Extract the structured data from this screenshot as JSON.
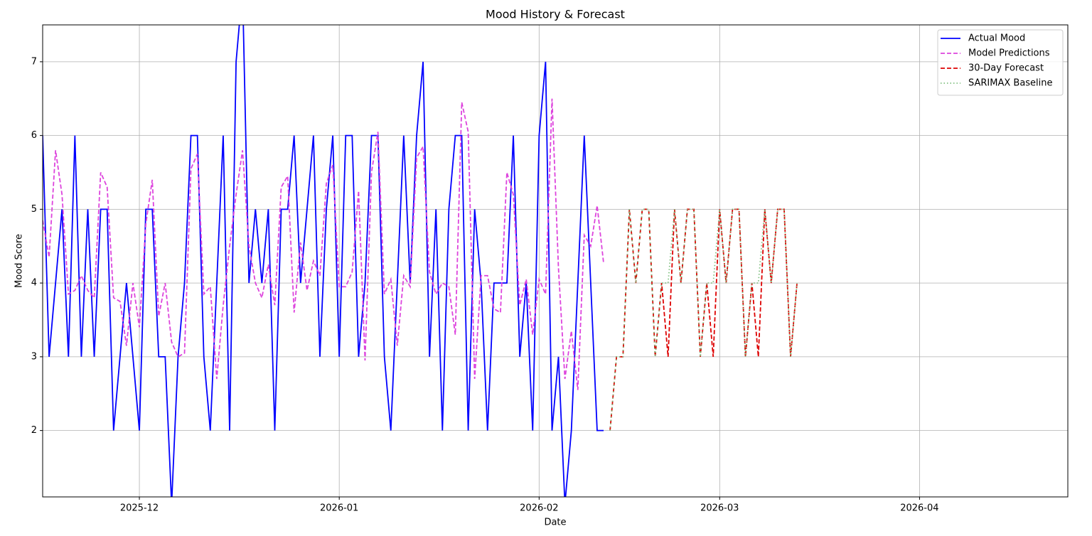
{
  "chart_data": {
    "type": "line",
    "title": "Mood History & Forecast",
    "xlabel": "Date",
    "ylabel": "Mood Score",
    "xlim": [
      20408,
      20567
    ],
    "ylim": [
      1.1,
      7.5
    ],
    "xticks": [
      {
        "value": 20423,
        "label": "2025-12"
      },
      {
        "value": 20454,
        "label": "2026-01"
      },
      {
        "value": 20485,
        "label": "2026-02"
      },
      {
        "value": 20513,
        "label": "2026-03"
      },
      {
        "value": 20544,
        "label": "2026-04"
      }
    ],
    "yticks": [
      2,
      3,
      4,
      5,
      6,
      7
    ],
    "grid": true,
    "legend": "upper right",
    "series": [
      {
        "name": "Actual Mood",
        "color": "#0000ff",
        "linestyle": "solid",
        "x": [
          20408,
          20409,
          20410,
          20411,
          20412,
          20413,
          20414,
          20415,
          20416,
          20417,
          20418,
          20419,
          20420,
          20421,
          20422,
          20423,
          20424,
          20425,
          20426,
          20427,
          20428,
          20429,
          20430,
          20431,
          20432,
          20433,
          20434,
          20435,
          20436,
          20437,
          20438,
          20439,
          20440,
          20441,
          20442,
          20443,
          20444,
          20445,
          20446,
          20447,
          20448,
          20449,
          20450,
          20451,
          20452,
          20453,
          20454,
          20455,
          20456,
          20457,
          20458,
          20459,
          20460,
          20461,
          20462,
          20463,
          20464,
          20465,
          20466,
          20467,
          20468,
          20469,
          20470,
          20471,
          20472,
          20473,
          20474,
          20475,
          20476,
          20477,
          20478,
          20479,
          20480,
          20481,
          20482,
          20483,
          20484,
          20485,
          20486,
          20487,
          20488,
          20489,
          20490,
          20491,
          20492,
          20493,
          20494,
          20495
        ],
        "values": [
          6,
          3,
          4,
          5,
          3,
          6,
          3,
          5,
          3,
          5,
          5,
          2,
          3,
          4,
          3,
          2,
          5,
          5,
          3,
          3,
          1,
          3,
          4,
          6,
          6,
          3,
          2,
          4,
          6,
          2,
          7,
          8,
          4,
          5,
          4,
          5,
          2,
          5,
          5,
          6,
          4,
          5,
          6,
          3,
          5,
          6,
          3,
          6,
          6,
          3,
          4,
          6,
          6,
          3,
          2,
          4,
          6,
          4,
          6,
          7,
          3,
          5,
          2,
          5,
          6,
          6,
          2,
          5,
          4,
          2,
          4,
          4,
          4,
          6,
          3,
          4,
          2,
          6,
          7,
          2,
          3,
          1,
          2,
          4,
          6,
          4,
          2,
          2
        ]
      },
      {
        "name": "Model Predictions",
        "color": "#dd44dd",
        "linestyle": "dashed",
        "x": [
          20408,
          20409,
          20410,
          20411,
          20412,
          20413,
          20414,
          20415,
          20416,
          20417,
          20418,
          20419,
          20420,
          20421,
          20422,
          20423,
          20424,
          20425,
          20426,
          20427,
          20428,
          20429,
          20430,
          20431,
          20432,
          20433,
          20434,
          20435,
          20436,
          20437,
          20438,
          20439,
          20440,
          20441,
          20442,
          20443,
          20444,
          20445,
          20446,
          20447,
          20448,
          20449,
          20450,
          20451,
          20452,
          20453,
          20454,
          20455,
          20456,
          20457,
          20458,
          20459,
          20460,
          20461,
          20462,
          20463,
          20464,
          20465,
          20466,
          20467,
          20468,
          20469,
          20470,
          20471,
          20472,
          20473,
          20474,
          20475,
          20476,
          20477,
          20478,
          20479,
          20480,
          20481,
          20482,
          20483,
          20484,
          20485,
          20486,
          20487,
          20488,
          20489,
          20490,
          20491,
          20492,
          20493,
          20494,
          20495
        ],
        "values": [
          4.85,
          4.35,
          5.8,
          5.2,
          3.85,
          3.9,
          4.1,
          3.9,
          3.8,
          5.5,
          5.3,
          3.8,
          3.75,
          3.15,
          4.0,
          3.4,
          4.8,
          5.4,
          3.55,
          4.0,
          3.2,
          3.0,
          3.05,
          5.55,
          5.75,
          3.85,
          3.95,
          2.7,
          3.7,
          4.5,
          5.2,
          5.8,
          4.5,
          4.0,
          3.8,
          4.25,
          3.7,
          5.3,
          5.45,
          3.6,
          4.55,
          3.9,
          4.3,
          4.1,
          5.35,
          5.6,
          3.95,
          3.95,
          4.15,
          5.25,
          2.95,
          5.5,
          6.05,
          3.85,
          4.05,
          3.15,
          4.1,
          3.95,
          5.7,
          5.85,
          4.15,
          3.85,
          4.0,
          3.95,
          3.3,
          6.45,
          6.05,
          2.7,
          4.1,
          4.1,
          3.65,
          3.6,
          5.5,
          5.2,
          3.7,
          4.05,
          3.3,
          4.05,
          3.85,
          6.5,
          4.2,
          2.7,
          3.35,
          2.55,
          4.65,
          4.5,
          5.05,
          4.27
        ]
      },
      {
        "name": "30-Day Forecast",
        "color": "#dd0000",
        "linestyle": "dashed",
        "x": [
          20496,
          20497,
          20498,
          20499,
          20500,
          20501,
          20502,
          20503,
          20504,
          20505,
          20506,
          20507,
          20508,
          20509,
          20510,
          20511,
          20512,
          20513,
          20514,
          20515,
          20516,
          20517,
          20518,
          20519,
          20520,
          20521,
          20522,
          20523,
          20524,
          20525
        ],
        "values": [
          2,
          3,
          3,
          5,
          4,
          5,
          5,
          3,
          4,
          3,
          5,
          4,
          5,
          5,
          3,
          4,
          3,
          5,
          4,
          5,
          5,
          3,
          4,
          3,
          5,
          4,
          5,
          5,
          3,
          4
        ]
      },
      {
        "name": "SARIMAX Baseline",
        "color": "#80c080",
        "linestyle": "dotted",
        "x": [
          20496,
          20497,
          20498,
          20499,
          20500,
          20501,
          20502,
          20503,
          20504,
          20505,
          20506,
          20507,
          20508,
          20509,
          20510,
          20511,
          20512,
          20513,
          20514,
          20515,
          20516,
          20517,
          20518,
          20519,
          20520,
          20521,
          20522,
          20523,
          20524,
          20525
        ],
        "values": [
          2,
          3,
          3,
          5,
          4,
          5,
          5,
          3,
          4,
          4,
          5,
          4,
          5,
          5,
          3,
          4,
          4,
          5,
          4,
          5,
          5,
          3,
          4,
          4,
          5,
          4,
          5,
          5,
          3,
          4
        ]
      }
    ]
  }
}
